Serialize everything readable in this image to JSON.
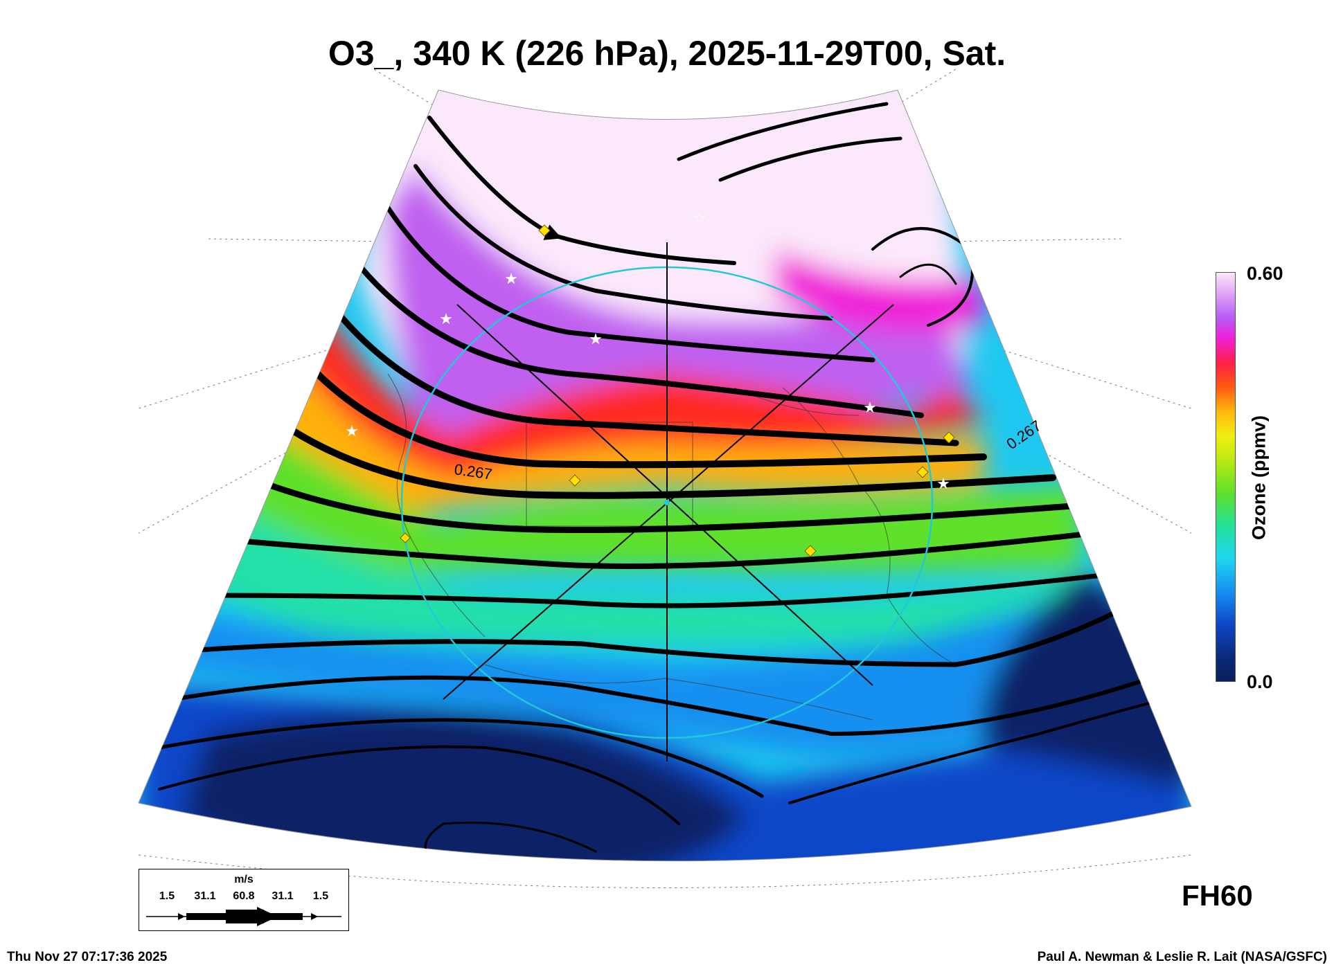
{
  "title": "O3_, 340 K (226 hPa), 2025-11-29T00, Sat.",
  "colorbar": {
    "label": "Ozone (ppmv)",
    "max": "0.60",
    "min": "0.0",
    "colors": [
      "#0b1f5c",
      "#0f47c9",
      "#1690f0",
      "#1fd6f0",
      "#23e09a",
      "#5fe02c",
      "#b8ea12",
      "#f0ee10",
      "#ffb810",
      "#ff5a10",
      "#ff1f4a",
      "#f020d8",
      "#b65cf5",
      "#e2a6f5",
      "#fbe8fb"
    ]
  },
  "contour_labels": [
    "0.267",
    "0.267"
  ],
  "wind_legend": {
    "unit": "m/s",
    "values": [
      "1.5",
      "31.1",
      "60.8",
      "31.1",
      "1.5"
    ]
  },
  "forecast_hour": "FH60",
  "timestamp": "Thu Nov 27 07:17:36 2025",
  "credit": "Paul A. Newman & Leslie R. Lait (NASA/GSFC)",
  "markers": {
    "diamond_color": "#ffe000",
    "star_color": "#ffffff",
    "ring_color": "#22c8d8"
  }
}
